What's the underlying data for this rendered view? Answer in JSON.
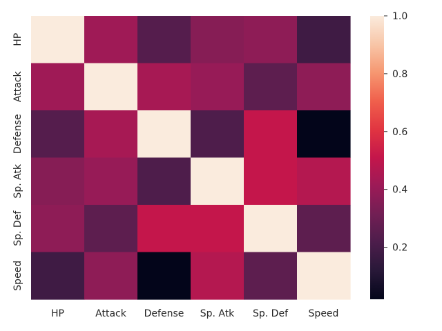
{
  "chart_data": {
    "type": "heatmap",
    "title": "",
    "xlabel": "",
    "ylabel": "",
    "x_categories": [
      "HP",
      "Attack",
      "Defense",
      "Sp. Atk",
      "Sp. Def",
      "Speed"
    ],
    "y_categories": [
      "HP",
      "Attack",
      "Defense",
      "Sp. Atk",
      "Sp. Def",
      "Speed"
    ],
    "values": [
      [
        1.0,
        0.42,
        0.24,
        0.36,
        0.38,
        0.18
      ],
      [
        0.42,
        1.0,
        0.44,
        0.4,
        0.26,
        0.38
      ],
      [
        0.24,
        0.44,
        1.0,
        0.22,
        0.51,
        0.02
      ],
      [
        0.36,
        0.4,
        0.22,
        1.0,
        0.51,
        0.47
      ],
      [
        0.38,
        0.26,
        0.51,
        0.51,
        1.0,
        0.26
      ],
      [
        0.18,
        0.38,
        0.02,
        0.47,
        0.26,
        1.0
      ]
    ],
    "colorbar": {
      "min": 0.02,
      "max": 1.0,
      "ticks": [
        0.2,
        0.4,
        0.6,
        0.8,
        1.0
      ],
      "tick_labels": [
        "0.2",
        "0.4",
        "0.6",
        "0.8",
        "1.0"
      ]
    },
    "colormap": "rocket",
    "grid": false
  }
}
